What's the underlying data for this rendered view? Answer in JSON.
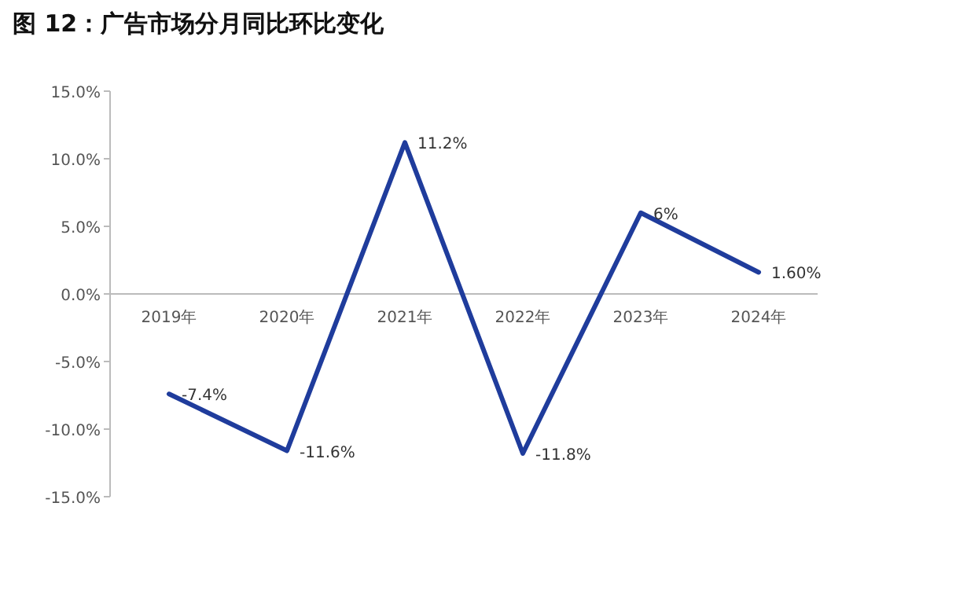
{
  "chart_data": {
    "type": "line",
    "title": "图 12：广告市场分月同比环比变化",
    "categories": [
      "2019年",
      "2020年",
      "2021年",
      "2022年",
      "2023年",
      "2024年"
    ],
    "values": [
      -7.4,
      -11.6,
      11.2,
      -11.8,
      6,
      1.6
    ],
    "value_labels": [
      "-7.4%",
      "-11.6%",
      "11.2%",
      "-11.8%",
      "6%",
      "1.60%"
    ],
    "color": "#1f3c9c",
    "ylim": [
      -15,
      15
    ],
    "yticks": [
      {
        "value": -15,
        "label": "-15.0%"
      },
      {
        "value": -10,
        "label": "-10.0%"
      },
      {
        "value": -5,
        "label": "-5.0%"
      },
      {
        "value": 0,
        "label": "0.0%"
      },
      {
        "value": 5,
        "label": "5.0%"
      },
      {
        "value": 10,
        "label": "10.0%"
      },
      {
        "value": 15,
        "label": "15.0%"
      }
    ]
  }
}
